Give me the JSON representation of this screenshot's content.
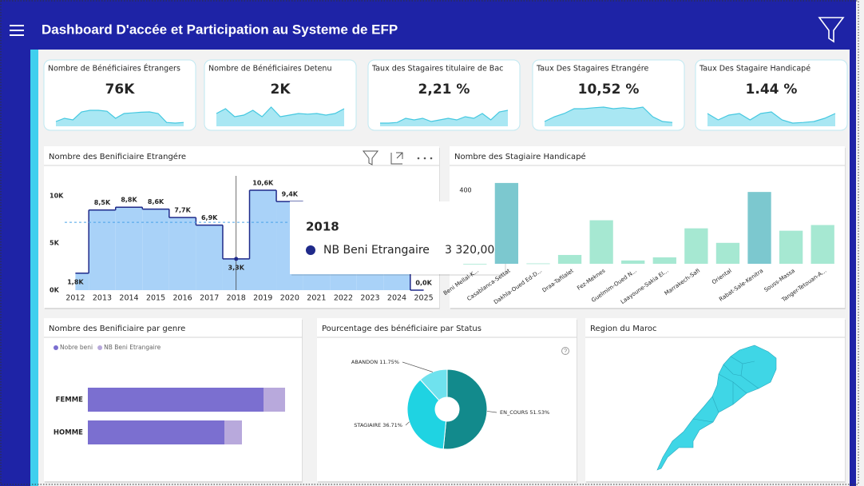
{
  "header": {
    "title": "Dashboard D'accée et Participation au Systeme de EFP"
  },
  "kpis": [
    {
      "title": "Nombre de Bénéficiaires Étrangers",
      "value": "76K",
      "ylim": [
        0,
        100
      ],
      "trend": [
        15,
        25,
        20,
        45,
        50,
        50,
        47,
        25,
        40,
        42,
        44,
        45,
        40,
        12,
        10,
        12
      ]
    },
    {
      "title": "Nombre de Bénéficiaires Detenu",
      "value": "2K",
      "ylim": [
        0,
        100
      ],
      "trend": [
        40,
        55,
        30,
        35,
        50,
        30,
        60,
        30,
        35,
        40,
        38,
        40,
        35,
        40,
        55
      ]
    },
    {
      "title": "Taux des Stagaires titulaire de Bac",
      "value": "2,21 %",
      "ylim": [
        0,
        100
      ],
      "trend": [
        10,
        10,
        12,
        25,
        20,
        25,
        15,
        20,
        25,
        20,
        30,
        25,
        40,
        20,
        45,
        50
      ]
    },
    {
      "title": "Taux Des Stagaires Etrangére",
      "value": "10,52 %",
      "ylim": [
        0,
        100
      ],
      "trend": [
        15,
        30,
        40,
        55,
        55,
        58,
        60,
        55,
        58,
        55,
        60,
        30,
        15,
        12
      ]
    },
    {
      "title": "Taux Des Stagaire Handicapé",
      "value": "1.44 %",
      "ylim": [
        0,
        100
      ],
      "trend": [
        40,
        20,
        35,
        40,
        20,
        40,
        45,
        20,
        10,
        12,
        15,
        25,
        40
      ]
    }
  ],
  "chart_data": [
    {
      "type": "step",
      "title": "Nombre des Benificiaire Etrangére",
      "x": [
        2012,
        2013,
        2014,
        2015,
        2016,
        2017,
        2018,
        2019,
        2020,
        2021,
        2022,
        2023,
        2024,
        2025
      ],
      "xlim": [
        2011.6,
        2025.4
      ],
      "xticks": [
        2012,
        2013,
        2014,
        2015,
        2016,
        2017,
        2018,
        2019,
        2020,
        2021,
        2022,
        2023,
        2024,
        2025
      ],
      "series": [
        {
          "name": "NB Beni Etrangaire",
          "color": "#1f2a8a",
          "fill": "#a9d2f8",
          "values": [
            1800,
            8500,
            8800,
            8600,
            7700,
            6900,
            3320,
            10600,
            9400,
            9000,
            8800,
            8500,
            8000,
            0
          ],
          "value_labels": [
            "1,8K",
            "8,5K",
            "8,8K",
            "8,6K",
            "7,7K",
            "6,9K",
            "3,3K",
            "10,6K",
            "9,4K",
            null,
            null,
            null,
            null,
            "0,0K"
          ]
        }
      ],
      "average_line": 7200,
      "ylim": [
        0,
        11700
      ],
      "yticks": [
        {
          "value": 0,
          "label": "0K"
        },
        {
          "value": 5000,
          "label": "5K"
        },
        {
          "value": 10000,
          "label": "10K"
        }
      ],
      "tooltip": {
        "title": "2018",
        "series": "NB Beni Etrangaire",
        "value": "3 320,00"
      }
    },
    {
      "type": "bar",
      "title": "Nombre des Stagiaire Handicapé",
      "categories": [
        "Beni Mellal-K...",
        "Casablanca-Settat",
        "Dakhla-Oued Ed-D...",
        "Draa-Tafilalet",
        "Fez-Meknes",
        "Guelmim-Oued N...",
        "Laayoune-Sakia El...",
        "Marrakech-Safi",
        "Oriental",
        "Rabat-Sale-Kenitra",
        "Souss-Massa",
        "Tanger-Tetouan-A..."
      ],
      "values": [
        0,
        440,
        2,
        48,
        237,
        18,
        35,
        193,
        114,
        391,
        180,
        211
      ],
      "colors": [
        "#a6e8d2",
        "#7cc8cf",
        "#a6e8d2",
        "#a6e8d2",
        "#a6e8d2",
        "#a6e8d2",
        "#a6e8d2",
        "#a6e8d2",
        "#a6e8d2",
        "#7cc8cf",
        "#a6e8d2",
        "#a6e8d2"
      ],
      "ylim": [
        0,
        470
      ],
      "yticks": [
        400
      ]
    },
    {
      "type": "hbar",
      "title": "Nombre des Benificiaire par genre",
      "stacked": true,
      "categories": [
        "FEMME",
        "HOMME"
      ],
      "series": [
        {
          "name": "Nobre beni",
          "color": "#7b6fd0",
          "values": [
            220,
            171
          ]
        },
        {
          "name": "NB Beni Etrangaire",
          "color": "#b8a9dc",
          "values": [
            27,
            22
          ]
        }
      ],
      "xlim": [
        0,
        260
      ]
    },
    {
      "type": "pie",
      "title": "Pourcentage des bénéficiaire par Status",
      "donut": true,
      "categories": [
        "EN_COURS",
        "STAGIAIRE",
        "ABANDON"
      ],
      "values": [
        51.53,
        36.71,
        11.75
      ],
      "value_labels": [
        "51.53%",
        "36.71%",
        "11.75%"
      ],
      "colors": [
        "#128a8c",
        "#1fd3e2",
        "#6fe2ee"
      ]
    }
  ],
  "map": {
    "title": "Region du Maroc"
  }
}
